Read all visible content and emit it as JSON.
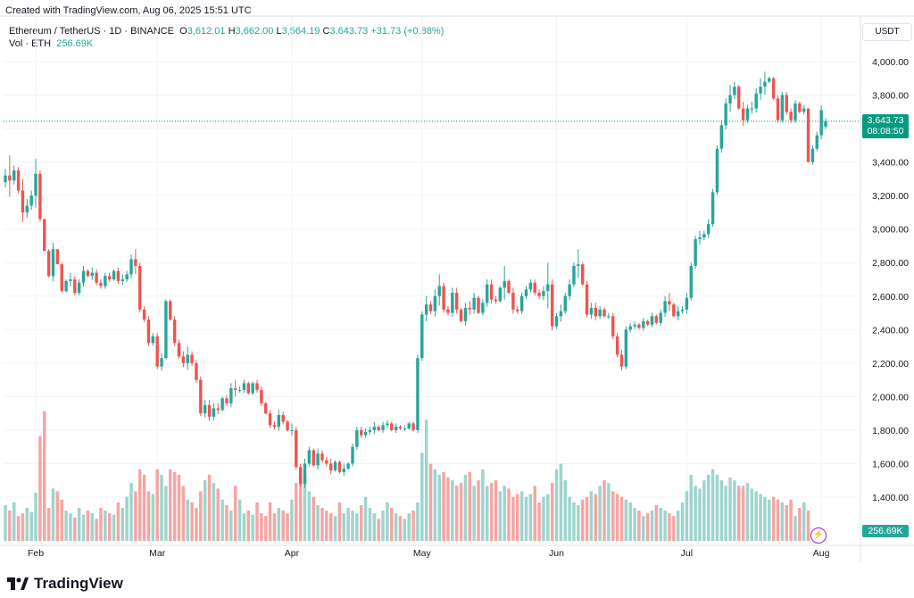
{
  "header": {
    "created": "Created with TradingView.com, Aug 06, 2025 15:51 UTC"
  },
  "legend": {
    "symbol": "Ethereum / TetherUS · 1D · BINANCE",
    "o_label": "O",
    "o_value": "3,612.01",
    "h_label": "H",
    "h_value": "3,662.00",
    "l_label": "L",
    "l_value": "3,564.19",
    "c_label": "C",
    "c_value": "3,643.73",
    "change": "+31.73 (+0.88%)",
    "vol_label": "Vol · ETH",
    "vol_value": "256.69K"
  },
  "axis": {
    "currency": "USDT"
  },
  "last_price": {
    "price": "3,643.73",
    "countdown": "08:08:50",
    "volume": "256.69K"
  },
  "logo": {
    "text": "TradingView"
  },
  "colors": {
    "up": "#26a69a",
    "down": "#ef5350",
    "up_vol": "#9fd4ce",
    "down_vol": "#f5a6a4",
    "last_line": "#089981"
  },
  "chart_data": {
    "type": "candlestick",
    "title": "Ethereum / TetherUS · 1D · BINANCE",
    "ylabel": "USDT",
    "ylim": [
      1150,
      4150
    ],
    "y_ticks": [
      1400,
      1600,
      1800,
      2000,
      2200,
      2400,
      2600,
      2800,
      3000,
      3200,
      3400,
      3600,
      3800,
      4000
    ],
    "y_tick_labels": [
      "1,400.00",
      "1,600.00",
      "1,800.00",
      "2,000.00",
      "2,200.00",
      "2,400.00",
      "2,600.00",
      "2,800.00",
      "3,000.00",
      "3,200.00",
      "3,400.00",
      "3,600.00",
      "3,800.00",
      "4,000.00"
    ],
    "x_ticks": [
      {
        "label": "Feb",
        "index": 7
      },
      {
        "label": "Mar",
        "index": 35
      },
      {
        "label": "Apr",
        "index": 66
      },
      {
        "label": "May",
        "index": 96
      },
      {
        "label": "Jun",
        "index": 127
      },
      {
        "label": "Jul",
        "index": 157
      },
      {
        "label": "Aug",
        "index": 188
      }
    ],
    "last_close": 3643.73,
    "closes": [
      3320,
      3290,
      3350,
      3230,
      3100,
      3140,
      3200,
      3330,
      3060,
      2870,
      2720,
      2880,
      2790,
      2630,
      2690,
      2700,
      2620,
      2680,
      2750,
      2720,
      2740,
      2680,
      2660,
      2720,
      2700,
      2750,
      2690,
      2700,
      2730,
      2820,
      2780,
      2520,
      2460,
      2320,
      2360,
      2180,
      2230,
      2570,
      2460,
      2320,
      2240,
      2200,
      2250,
      2200,
      2100,
      1900,
      1950,
      1880,
      1930,
      1920,
      1990,
      1960,
      2050,
      2040,
      2040,
      2080,
      2020,
      2080,
      2040,
      1960,
      1900,
      1830,
      1820,
      1890,
      1850,
      1800,
      1800,
      1580,
      1480,
      1600,
      1680,
      1590,
      1660,
      1620,
      1600,
      1560,
      1610,
      1550,
      1570,
      1600,
      1700,
      1800,
      1770,
      1790,
      1800,
      1820,
      1800,
      1830,
      1840,
      1800,
      1820,
      1810,
      1810,
      1840,
      1800,
      2230,
      2490,
      2550,
      2510,
      2600,
      2660,
      2520,
      2500,
      2620,
      2520,
      2450,
      2530,
      2520,
      2590,
      2500,
      2560,
      2670,
      2580,
      2570,
      2650,
      2690,
      2620,
      2520,
      2510,
      2600,
      2640,
      2680,
      2620,
      2600,
      2630,
      2670,
      2420,
      2480,
      2510,
      2600,
      2670,
      2780,
      2790,
      2670,
      2490,
      2530,
      2480,
      2520,
      2480,
      2480,
      2360,
      2250,
      2180,
      2400,
      2420,
      2430,
      2410,
      2450,
      2430,
      2480,
      2440,
      2500,
      2570,
      2550,
      2480,
      2510,
      2520,
      2590,
      2780,
      2940,
      2950,
      2970,
      3030,
      3220,
      3480,
      3620,
      3750,
      3800,
      3850,
      3720,
      3650,
      3720,
      3720,
      3810,
      3850,
      3880,
      3900,
      3780,
      3650,
      3800,
      3700,
      3650,
      3750,
      3700,
      3720,
      3400,
      3480,
      3560,
      3710,
      3643.73
    ],
    "opens": [
      3280,
      3320,
      3290,
      3350,
      3230,
      3100,
      3140,
      3200,
      3330,
      3060,
      2870,
      2720,
      2880,
      2790,
      2630,
      2690,
      2700,
      2620,
      2680,
      2750,
      2720,
      2740,
      2680,
      2660,
      2720,
      2700,
      2750,
      2690,
      2700,
      2730,
      2820,
      2780,
      2520,
      2460,
      2320,
      2360,
      2180,
      2230,
      2570,
      2460,
      2320,
      2240,
      2200,
      2250,
      2200,
      2100,
      1900,
      1950,
      1880,
      1930,
      1920,
      1990,
      1960,
      2050,
      2040,
      2040,
      2080,
      2020,
      2080,
      2040,
      1960,
      1900,
      1830,
      1820,
      1890,
      1850,
      1800,
      1800,
      1580,
      1480,
      1600,
      1680,
      1590,
      1660,
      1620,
      1600,
      1560,
      1610,
      1550,
      1570,
      1600,
      1700,
      1800,
      1770,
      1790,
      1800,
      1820,
      1800,
      1830,
      1840,
      1800,
      1820,
      1810,
      1810,
      1840,
      1800,
      2230,
      2490,
      2550,
      2510,
      2600,
      2660,
      2520,
      2500,
      2620,
      2520,
      2450,
      2530,
      2520,
      2590,
      2500,
      2560,
      2670,
      2580,
      2570,
      2650,
      2690,
      2620,
      2520,
      2510,
      2600,
      2640,
      2680,
      2620,
      2600,
      2630,
      2670,
      2420,
      2480,
      2510,
      2600,
      2670,
      2780,
      2790,
      2670,
      2490,
      2530,
      2480,
      2520,
      2480,
      2480,
      2360,
      2250,
      2180,
      2400,
      2420,
      2430,
      2410,
      2450,
      2430,
      2480,
      2440,
      2500,
      2570,
      2550,
      2480,
      2510,
      2520,
      2590,
      2780,
      2940,
      2950,
      2970,
      3030,
      3220,
      3480,
      3620,
      3750,
      3800,
      3850,
      3720,
      3650,
      3720,
      3720,
      3810,
      3850,
      3880,
      3900,
      3780,
      3650,
      3800,
      3700,
      3650,
      3750,
      3700,
      3720,
      3400,
      3480,
      3560,
      3612.01
    ],
    "volumes": [
      130,
      110,
      140,
      90,
      100,
      120,
      105,
      175,
      380,
      470,
      120,
      190,
      180,
      150,
      110,
      100,
      85,
      120,
      95,
      110,
      100,
      80,
      120,
      110,
      100,
      95,
      140,
      120,
      160,
      210,
      180,
      260,
      240,
      180,
      170,
      260,
      240,
      200,
      260,
      250,
      240,
      200,
      150,
      140,
      120,
      180,
      220,
      240,
      210,
      190,
      150,
      130,
      110,
      200,
      150,
      100,
      110,
      95,
      140,
      100,
      90,
      140,
      100,
      120,
      110,
      100,
      150,
      210,
      230,
      240,
      180,
      160,
      130,
      120,
      110,
      100,
      90,
      140,
      100,
      120,
      110,
      100,
      130,
      160,
      120,
      100,
      80,
      110,
      140,
      120,
      100,
      90,
      80,
      100,
      110,
      140,
      320,
      440,
      280,
      260,
      240,
      250,
      230,
      220,
      200,
      210,
      240,
      250,
      200,
      220,
      260,
      200,
      210,
      220,
      180,
      200,
      190,
      160,
      170,
      180,
      160,
      170,
      200,
      140,
      160,
      170,
      210,
      260,
      280,
      220,
      160,
      140,
      130,
      150,
      160,
      180,
      170,
      200,
      220,
      210,
      180,
      170,
      160,
      150,
      140,
      120,
      110,
      90,
      100,
      110,
      130,
      120,
      110,
      100,
      90,
      110,
      140,
      180,
      240,
      200,
      190,
      220,
      240,
      260,
      240,
      220,
      200,
      230,
      220,
      200,
      200,
      210,
      190,
      180,
      170,
      160,
      150,
      160,
      150,
      140,
      130,
      150,
      90,
      120,
      140,
      110
    ],
    "highs": [
      3360,
      3440,
      3380,
      3370,
      3300,
      3180,
      3230,
      3420,
      3350,
      3060,
      2880,
      2920,
      2840,
      2800,
      2700,
      2740,
      2720,
      2700,
      2780,
      2760,
      2770,
      2760,
      2700,
      2740,
      2740,
      2760,
      2770,
      2730,
      2750,
      2850,
      2880,
      2800,
      2540,
      2480,
      2380,
      2380,
      2260,
      2580,
      2580,
      2480,
      2340,
      2270,
      2300,
      2270,
      2220,
      2120,
      1980,
      1980,
      1960,
      1960,
      2000,
      2010,
      2080,
      2100,
      2060,
      2100,
      2090,
      2090,
      2100,
      2060,
      1970,
      1920,
      1850,
      1920,
      1910,
      1860,
      1840,
      1820,
      1600,
      1630,
      1700,
      1690,
      1690,
      1680,
      1640,
      1630,
      1620,
      1620,
      1600,
      1610,
      1720,
      1820,
      1820,
      1810,
      1820,
      1850,
      1830,
      1850,
      1860,
      1850,
      1840,
      1830,
      1830,
      1850,
      1850,
      2250,
      2510,
      2600,
      2570,
      2640,
      2730,
      2680,
      2540,
      2650,
      2650,
      2530,
      2560,
      2570,
      2620,
      2600,
      2580,
      2700,
      2700,
      2600,
      2660,
      2780,
      2700,
      2650,
      2540,
      2620,
      2660,
      2700,
      2700,
      2640,
      2660,
      2800,
      2700,
      2500,
      2550,
      2620,
      2700,
      2800,
      2880,
      2800,
      2690,
      2560,
      2560,
      2540,
      2530,
      2500,
      2500,
      2380,
      2280,
      2420,
      2440,
      2450,
      2440,
      2470,
      2460,
      2500,
      2490,
      2520,
      2600,
      2620,
      2560,
      2540,
      2540,
      2620,
      2800,
      2960,
      2990,
      2990,
      3060,
      3240,
      3500,
      3650,
      3780,
      3860,
      3880,
      3860,
      3760,
      3740,
      3760,
      3840,
      3900,
      3940,
      3910,
      3910,
      3800,
      3820,
      3820,
      3720,
      3770,
      3760,
      3740,
      3700,
      3500,
      3580,
      3740,
      3662
    ]
  }
}
